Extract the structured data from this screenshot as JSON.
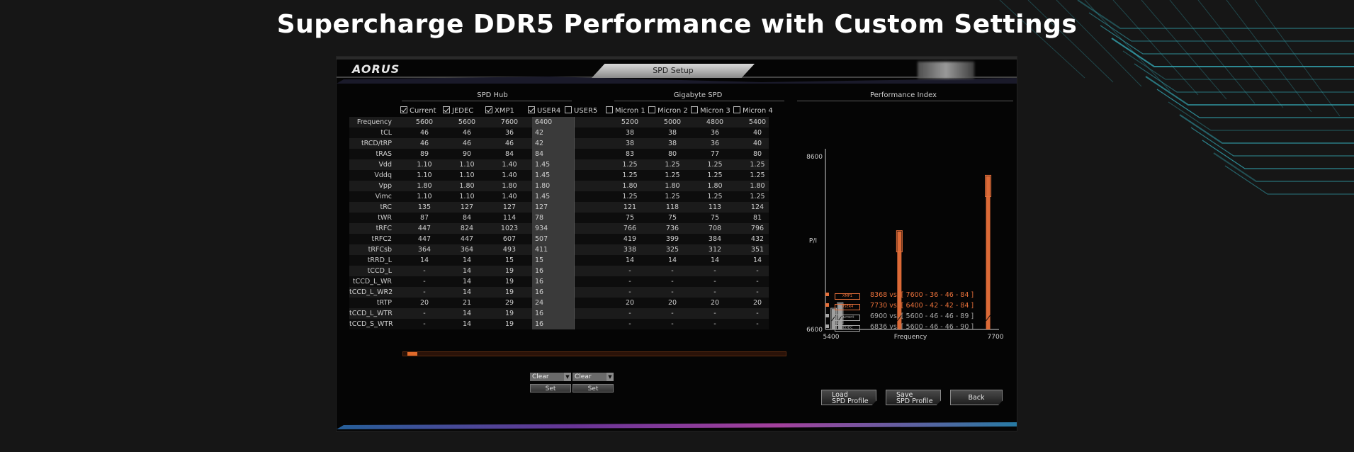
{
  "headline": "Supercharge DDR5 Performance with Custom Settings",
  "app": {
    "logo": "AORUS",
    "window_title": "SPD Setup"
  },
  "colors": {
    "accent": "#e8703a",
    "teal_lines": "#37b9c7",
    "user4_cell": "#3a3a3a"
  },
  "sections": {
    "spd_hub": "SPD Hub",
    "gigabyte_spd": "Gigabyte SPD",
    "performance_index": "Performance Index"
  },
  "columns": [
    {
      "label": "Current",
      "checked": true
    },
    {
      "label": "JEDEC",
      "checked": true
    },
    {
      "label": "XMP1",
      "checked": true
    },
    {
      "label": "USER4",
      "checked": true
    },
    {
      "label": "USER5",
      "checked": false
    },
    {
      "label": "Micron 1",
      "checked": false
    },
    {
      "label": "Micron 2",
      "checked": false
    },
    {
      "label": "Micron 3",
      "checked": false
    },
    {
      "label": "Micron 4",
      "checked": false
    }
  ],
  "rows": [
    {
      "label": "Frequency",
      "values": [
        "5600",
        "5600",
        "7600",
        "6400",
        "",
        "5200",
        "5000",
        "4800",
        "5400"
      ]
    },
    {
      "label": "tCL",
      "values": [
        "46",
        "46",
        "36",
        "42",
        "",
        "38",
        "38",
        "36",
        "40"
      ]
    },
    {
      "label": "tRCD/tRP",
      "values": [
        "46",
        "46",
        "46",
        "42",
        "",
        "38",
        "38",
        "36",
        "40"
      ]
    },
    {
      "label": "tRAS",
      "values": [
        "89",
        "90",
        "84",
        "84",
        "",
        "83",
        "80",
        "77",
        "80"
      ]
    },
    {
      "label": "Vdd",
      "values": [
        "1.10",
        "1.10",
        "1.40",
        "1.45",
        "",
        "1.25",
        "1.25",
        "1.25",
        "1.25"
      ]
    },
    {
      "label": "Vddq",
      "values": [
        "1.10",
        "1.10",
        "1.40",
        "1.45",
        "",
        "1.25",
        "1.25",
        "1.25",
        "1.25"
      ]
    },
    {
      "label": "Vpp",
      "values": [
        "1.80",
        "1.80",
        "1.80",
        "1.80",
        "",
        "1.80",
        "1.80",
        "1.80",
        "1.80"
      ]
    },
    {
      "label": "Vimc",
      "values": [
        "1.10",
        "1.10",
        "1.40",
        "1.45",
        "",
        "1.25",
        "1.25",
        "1.25",
        "1.25"
      ]
    },
    {
      "label": "tRC",
      "values": [
        "135",
        "127",
        "127",
        "127",
        "",
        "121",
        "118",
        "113",
        "124"
      ]
    },
    {
      "label": "tWR",
      "values": [
        "87",
        "84",
        "114",
        "78",
        "",
        "75",
        "75",
        "75",
        "81"
      ]
    },
    {
      "label": "tRFC",
      "values": [
        "447",
        "824",
        "1023",
        "934",
        "",
        "766",
        "736",
        "708",
        "796"
      ]
    },
    {
      "label": "tRFC2",
      "values": [
        "447",
        "447",
        "607",
        "507",
        "",
        "419",
        "399",
        "384",
        "432"
      ]
    },
    {
      "label": "tRFCsb",
      "values": [
        "364",
        "364",
        "493",
        "411",
        "",
        "338",
        "325",
        "312",
        "351"
      ]
    },
    {
      "label": "tRRD_L",
      "values": [
        "14",
        "14",
        "15",
        "15",
        "",
        "14",
        "14",
        "14",
        "14"
      ]
    },
    {
      "label": "tCCD_L",
      "values": [
        "-",
        "14",
        "19",
        "16",
        "",
        "-",
        "-",
        "-",
        "-"
      ]
    },
    {
      "label": "tCCD_L_WR",
      "values": [
        "-",
        "14",
        "19",
        "16",
        "",
        "-",
        "-",
        "-",
        "-"
      ]
    },
    {
      "label": "tCCD_L_WR2",
      "values": [
        "-",
        "14",
        "19",
        "16",
        "",
        "-",
        "-",
        "-",
        "-"
      ]
    },
    {
      "label": "tRTP",
      "values": [
        "20",
        "21",
        "29",
        "24",
        "",
        "20",
        "20",
        "20",
        "20"
      ]
    },
    {
      "label": "tCCD_L_WTR",
      "values": [
        "-",
        "14",
        "19",
        "16",
        "",
        "-",
        "-",
        "-",
        "-"
      ]
    },
    {
      "label": "tCCD_S_WTR",
      "values": [
        "-",
        "14",
        "19",
        "16",
        "",
        "-",
        "-",
        "-",
        "-"
      ]
    }
  ],
  "controls": {
    "clear_left": "Clear",
    "clear_right": "Clear",
    "set_left": "Set",
    "set_right": "Set"
  },
  "buttons": {
    "load_l1": "Load",
    "load_l2": "SPD Profile",
    "save_l1": "Save",
    "save_l2": "SPD Profile",
    "back": "Back"
  },
  "chart_data": {
    "type": "bar",
    "title": "Performance Index",
    "ylabel": "P/I",
    "xlabel": "Frequency",
    "ylim": [
      6600,
      8600
    ],
    "xlim": [
      5400,
      7700
    ],
    "y_ticks": [
      "8600",
      "6600"
    ],
    "x_ticks": [
      "5400",
      "7700"
    ],
    "series": [
      {
        "name": "XMP1",
        "x": 7600,
        "value": 8368,
        "label": "8368  vs. [ 7600 - 36 - 46 - 84 ]",
        "color": "#e8703a"
      },
      {
        "name": "USER4",
        "x": 6400,
        "value": 7730,
        "label": "7730  vs. [ 6400 - 42 - 42 - 84 ]",
        "color": "#e8703a"
      },
      {
        "name": "Current",
        "x": 5600,
        "value": 6900,
        "label": "6900  vs. [ 5600 - 46 - 46 - 89 ]",
        "color": "#a8a8a8"
      },
      {
        "name": "JEDEC",
        "x": 5550,
        "value": 6836,
        "label": "6836  vs. [ 5600 - 46 - 46 - 90 ]",
        "color": "#a8a8a8"
      }
    ]
  }
}
